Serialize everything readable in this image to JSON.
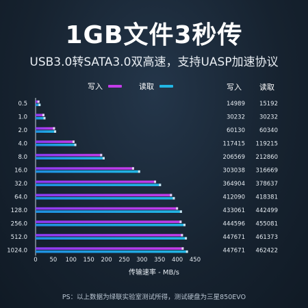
{
  "header": {
    "title": "1GB文件3秒传",
    "subtitle": "USB3.0转SATA3.0双高速，支持UASP加速协议"
  },
  "legend": {
    "write_label": "写入",
    "read_label": "读取"
  },
  "table_headers": {
    "write": "写入",
    "read": "读取"
  },
  "colors": {
    "write": "#c23ce8",
    "read": "#22b6e4",
    "bar_cap": "#e6ecf2"
  },
  "footnote": "PS：以上数据为绿联实验室测试所得，测试硬盘为三星850EVO",
  "chart_data": {
    "type": "bar",
    "orientation": "horizontal",
    "title": "",
    "xlabel": "传输速率 - MB/s",
    "ylabel": "",
    "xlim": [
      0,
      450
    ],
    "xticks": [
      0,
      50,
      100,
      150,
      200,
      250,
      300,
      350,
      400,
      450
    ],
    "categories": [
      "0.5",
      "1.0",
      "2.0",
      "4.0",
      "8.0",
      "16.0",
      "32.0",
      "64.0",
      "128.0",
      "256.0",
      "512.0",
      "1024.0"
    ],
    "series": [
      {
        "name": "写入",
        "values": [
          11,
          25,
          55,
          110,
          188,
          278,
          340,
          385,
          402,
          412,
          416,
          418
        ]
      },
      {
        "name": "读取",
        "values": [
          14,
          28,
          58,
          115,
          195,
          295,
          354,
          393,
          413,
          423,
          427,
          430
        ]
      }
    ],
    "table": {
      "write": [
        "14989",
        "30232",
        "60130",
        "117415",
        "206569",
        "303038",
        "364904",
        "412090",
        "433061",
        "444596",
        "447671",
        "447671"
      ],
      "read": [
        "15192",
        "30232",
        "60340",
        "119215",
        "212860",
        "316669",
        "378637",
        "418381",
        "442499",
        "455081",
        "461373",
        "462422"
      ]
    }
  }
}
